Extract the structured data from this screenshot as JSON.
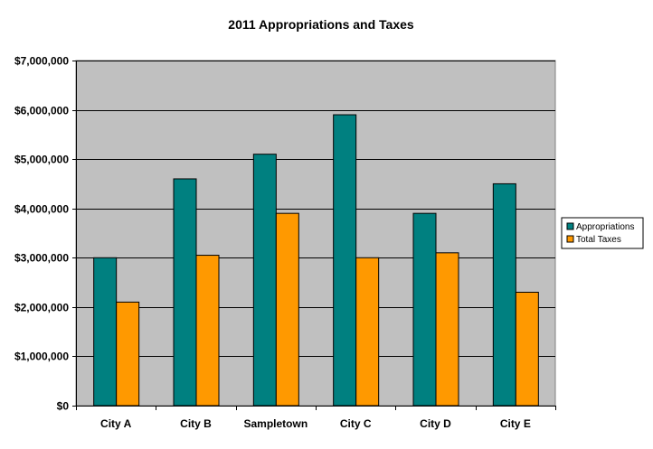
{
  "chart_data": {
    "type": "bar",
    "title": "2011 Appropriations and Taxes",
    "xlabel": "",
    "ylabel": "",
    "categories": [
      "City A",
      "City B",
      "Sampletown",
      "City C",
      "City D",
      "City E"
    ],
    "series": [
      {
        "name": "Appropriations",
        "color": "#008080",
        "values": [
          3000000,
          4600000,
          5100000,
          5900000,
          3900000,
          4500000
        ]
      },
      {
        "name": "Total Taxes",
        "color": "#FF9900",
        "values": [
          2100000,
          3050000,
          3900000,
          3000000,
          3100000,
          2300000
        ]
      }
    ],
    "ylim": [
      0,
      7000000
    ],
    "yticks": [
      0,
      1000000,
      2000000,
      3000000,
      4000000,
      5000000,
      6000000,
      7000000
    ],
    "ytick_labels": [
      "$0",
      "$1,000,000",
      "$2,000,000",
      "$3,000,000",
      "$4,000,000",
      "$5,000,000",
      "$6,000,000",
      "$7,000,000"
    ],
    "grid": true,
    "plot_background": "#C0C0C0",
    "legend_position": "right"
  }
}
